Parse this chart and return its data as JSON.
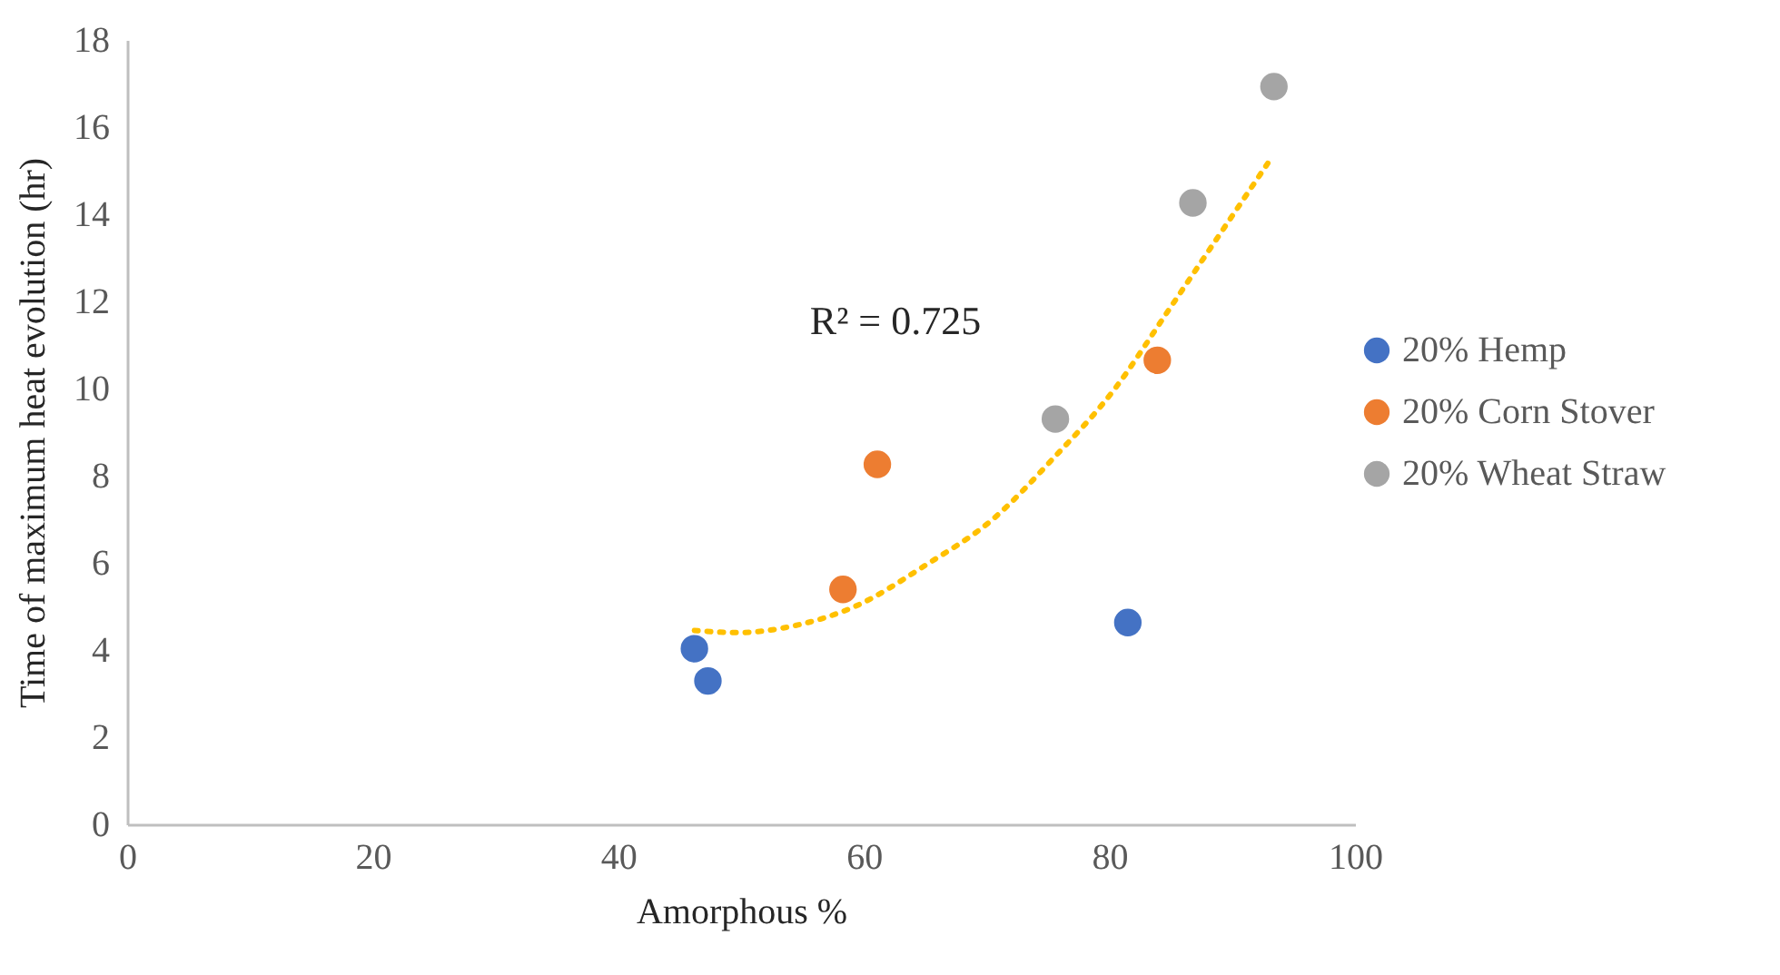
{
  "chart_data": {
    "type": "scatter",
    "xlabel": "Amorphous %",
    "ylabel": "Time of maximum heat evolution (hr)",
    "xlim": [
      0,
      100
    ],
    "xticks": [
      0,
      20,
      40,
      60,
      80,
      100
    ],
    "ylim": [
      0,
      18
    ],
    "yticks": [
      0,
      2,
      4,
      6,
      8,
      10,
      12,
      14,
      16,
      18
    ],
    "grid": false,
    "legend": "right",
    "marker": "circle",
    "series": [
      {
        "name": "20% Hemp",
        "color": "#4472c4",
        "x": [
          46.2,
          47.3,
          81.5
        ],
        "values": [
          4.03,
          3.29,
          4.63
        ]
      },
      {
        "name": "20% Corn Stover",
        "color": "#ed7d31",
        "x": [
          58.3,
          61.1,
          83.9
        ],
        "values": [
          5.39,
          8.26,
          10.65
        ]
      },
      {
        "name": "20% Wheat Straw",
        "color": "#a5a5a5",
        "x": [
          75.6,
          86.8,
          93.4
        ],
        "values": [
          9.3,
          14.26,
          16.93
        ]
      },
      {
        "type": "line",
        "color": "#ffc000",
        "line_style": "dotted",
        "marker": "none",
        "x": [
          46.2,
          49.7,
          54.7,
          59.2,
          65.1,
          70.5,
          75.4,
          80.4,
          84.8,
          88.8,
          92.9
        ],
        "values": [
          4.45,
          4.4,
          4.58,
          4.99,
          5.96,
          7.0,
          8.39,
          9.98,
          11.79,
          13.46,
          15.17
        ]
      }
    ],
    "annotations": [
      "R² = 0.725"
    ]
  }
}
